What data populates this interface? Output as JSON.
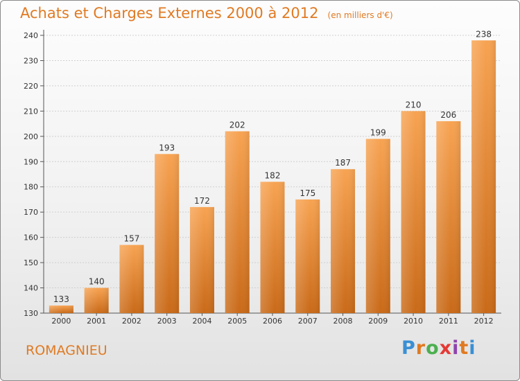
{
  "chart_data": {
    "type": "bar",
    "title": "Achats et Charges Externes 2000 à 2012",
    "subtitle": "(en milliers d'€)",
    "categories": [
      "2000",
      "2001",
      "2002",
      "2003",
      "2004",
      "2005",
      "2006",
      "2007",
      "2008",
      "2009",
      "2010",
      "2011",
      "2012"
    ],
    "values": [
      133,
      140,
      157,
      193,
      172,
      202,
      182,
      175,
      187,
      199,
      210,
      206,
      238
    ],
    "ylim": [
      130,
      240
    ],
    "yticks": [
      130,
      140,
      150,
      160,
      170,
      180,
      190,
      200,
      210,
      220,
      230,
      240
    ],
    "grid": true,
    "bar_color": "#f08a2a",
    "xlabel": "",
    "ylabel": ""
  },
  "footer": {
    "commune": "ROMAGNIEU",
    "logo_letters": [
      "P",
      "r",
      "o",
      "x",
      "i",
      "t",
      "i"
    ],
    "logo_colors": [
      "#3a8fd4",
      "#e07a22",
      "#4caf50",
      "#e53935",
      "#8e44ad",
      "#e07a22",
      "#3a8fd4"
    ]
  },
  "colors": {
    "accent": "#e07a22",
    "axis": "#555555",
    "grid": "#cfcfcf"
  }
}
